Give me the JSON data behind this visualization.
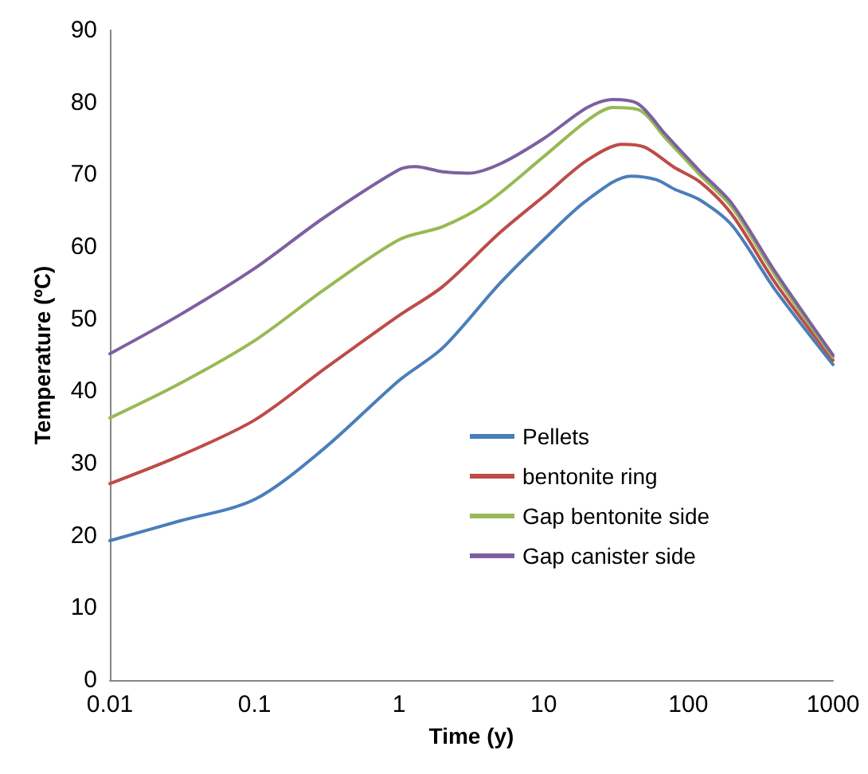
{
  "chart_data": {
    "type": "line",
    "xlabel": "Time (y)",
    "ylabel": "Temperature (ºC)",
    "log": "x",
    "xlim": [
      0.01,
      1000
    ],
    "xticks": [
      0.01,
      0.1,
      1,
      10,
      100,
      1000
    ],
    "ylim": [
      0,
      90
    ],
    "yticks": [
      0,
      10,
      20,
      30,
      40,
      50,
      60,
      70,
      80,
      90
    ],
    "grid": false,
    "legend": "bottom right",
    "marker": "none",
    "line_style": "solid",
    "series": [
      {
        "name": "Pellets",
        "color": "#4a7ebb",
        "x": [
          0.01,
          0.03,
          0.1,
          0.3,
          1,
          2,
          5,
          10,
          20,
          40,
          60,
          80,
          120,
          200,
          400,
          1000
        ],
        "values": [
          19.3,
          22,
          25,
          32,
          41.5,
          46,
          55,
          61,
          66.5,
          69.8,
          69.3,
          68,
          66.5,
          63,
          54,
          43.7
        ]
      },
      {
        "name": "bentonite ring",
        "color": "#be4b48",
        "x": [
          0.01,
          0.03,
          0.1,
          0.3,
          1,
          2,
          5,
          10,
          20,
          35,
          50,
          80,
          120,
          200,
          400,
          1000
        ],
        "values": [
          27.2,
          31,
          36,
          43,
          50.5,
          54.5,
          62,
          67,
          72,
          74.2,
          73.8,
          71,
          69,
          64.5,
          55,
          44.3
        ]
      },
      {
        "name": "Gap bentonite side",
        "color": "#98b954",
        "x": [
          0.01,
          0.03,
          0.1,
          0.3,
          1,
          2,
          4,
          10,
          20,
          30,
          45,
          70,
          120,
          200,
          400,
          1000
        ],
        "values": [
          36.3,
          41,
          47,
          54,
          61,
          62.8,
          66,
          72.5,
          77.5,
          79.3,
          79,
          75,
          70,
          65.5,
          56,
          44.7
        ]
      },
      {
        "name": "Gap canister side",
        "color": "#7d60a0",
        "x": [
          0.01,
          0.03,
          0.1,
          0.3,
          1,
          1.3,
          2,
          3,
          5,
          10,
          20,
          30,
          45,
          70,
          120,
          200,
          400,
          1000
        ],
        "values": [
          45.2,
          50.5,
          57,
          64,
          70.7,
          71.1,
          70.4,
          70.2,
          71.5,
          75,
          79.3,
          80.4,
          79.8,
          75.5,
          70.5,
          66,
          56.5,
          45
        ]
      }
    ]
  }
}
